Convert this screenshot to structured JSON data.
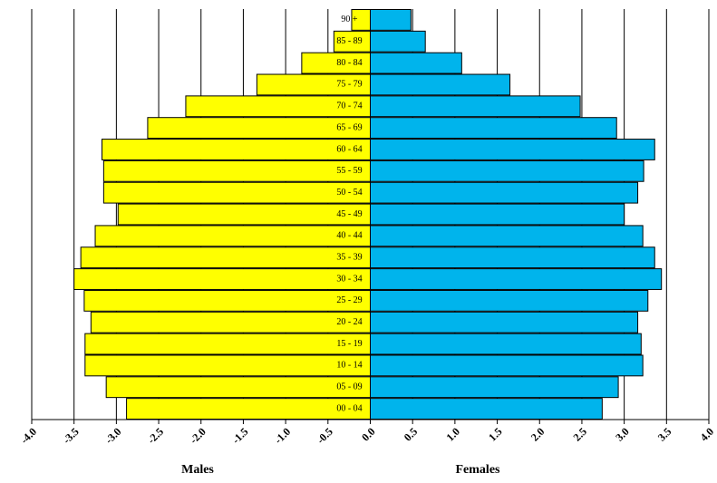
{
  "chart_data": {
    "type": "bar",
    "orientation": "horizontal",
    "categories": [
      "00 - 04",
      "05 - 09",
      "10 - 14",
      "15 - 19",
      "20 - 24",
      "25 - 29",
      "30 - 34",
      "35 - 39",
      "40 - 44",
      "45 - 49",
      "50 - 54",
      "55 - 59",
      "60 - 64",
      "65 - 69",
      "70 - 74",
      "75 - 79",
      "80 - 84",
      "85 - 89",
      "90 +"
    ],
    "series": [
      {
        "name": "Males",
        "color": "#ffff00",
        "values": [
          -2.88,
          -3.12,
          -3.37,
          -3.37,
          -3.3,
          -3.38,
          -3.5,
          -3.42,
          -3.25,
          -2.98,
          -3.15,
          -3.15,
          -3.17,
          -2.63,
          -2.18,
          -1.34,
          -0.81,
          -0.43,
          -0.22
        ]
      },
      {
        "name": "Females",
        "color": "#00b4ec",
        "values": [
          2.74,
          2.93,
          3.22,
          3.2,
          3.16,
          3.28,
          3.44,
          3.36,
          3.22,
          3.0,
          3.16,
          3.23,
          3.36,
          2.91,
          2.48,
          1.65,
          1.08,
          0.65,
          0.48
        ]
      }
    ],
    "xlim": [
      -4,
      4
    ],
    "xticks": [
      {
        "value": -4,
        "label": "-4.0"
      },
      {
        "value": -3.5,
        "label": "-3.5"
      },
      {
        "value": -3,
        "label": "-3.0"
      },
      {
        "value": -2.5,
        "label": "-2.5"
      },
      {
        "value": -2,
        "label": "-2.0"
      },
      {
        "value": -1.5,
        "label": "-1.5"
      },
      {
        "value": -1,
        "label": "-1.0"
      },
      {
        "value": -0.5,
        "label": "-0.5"
      },
      {
        "value": 0,
        "label": "0.0"
      },
      {
        "value": 0.5,
        "label": "0.5"
      },
      {
        "value": 1,
        "label": "1.0"
      },
      {
        "value": 1.5,
        "label": "1.5"
      },
      {
        "value": 2,
        "label": "2.0"
      },
      {
        "value": 2.5,
        "label": "2.5"
      },
      {
        "value": 3,
        "label": "3.0"
      },
      {
        "value": 3.5,
        "label": "3.5"
      },
      {
        "value": 4,
        "label": "4.0"
      }
    ],
    "grid": true
  }
}
